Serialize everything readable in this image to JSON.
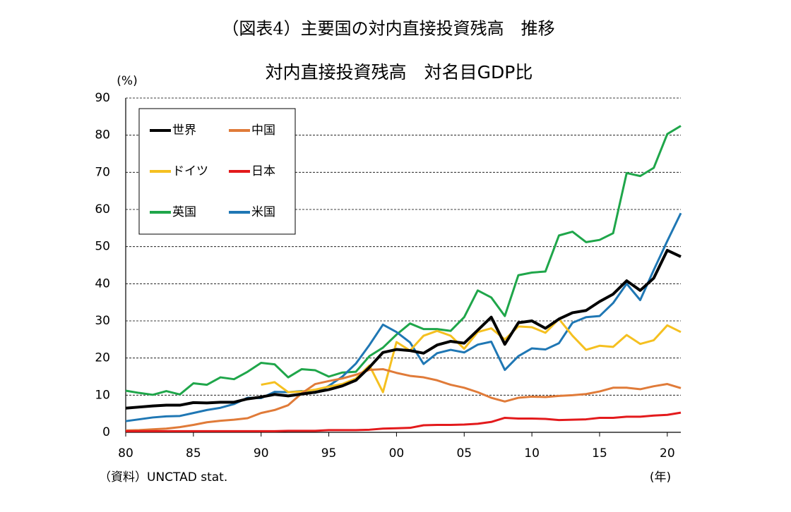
{
  "chart_data": {
    "type": "line",
    "page_title": "（図表4）主要国の対内直接投資残高　推移",
    "title": "対内直接投資残高　対名目GDP比",
    "y_unit": "(%)",
    "x_unit": "(年)",
    "source": "（資料）UNCTAD stat.",
    "x": [
      1980,
      1981,
      1982,
      1983,
      1984,
      1985,
      1986,
      1987,
      1988,
      1989,
      1990,
      1991,
      1992,
      1993,
      1994,
      1995,
      1996,
      1997,
      1998,
      1999,
      2000,
      2001,
      2002,
      2003,
      2004,
      2005,
      2006,
      2007,
      2008,
      2009,
      2010,
      2011,
      2012,
      2013,
      2014,
      2015,
      2016,
      2017,
      2018,
      2019,
      2020,
      2021
    ],
    "xlim": [
      1980,
      2021
    ],
    "xticks": [
      {
        "value": 1980,
        "label": "80"
      },
      {
        "value": 1985,
        "label": "85"
      },
      {
        "value": 1990,
        "label": "90"
      },
      {
        "value": 1995,
        "label": "95"
      },
      {
        "value": 2000,
        "label": "00"
      },
      {
        "value": 2005,
        "label": "05"
      },
      {
        "value": 2010,
        "label": "10"
      },
      {
        "value": 2015,
        "label": "15"
      },
      {
        "value": 2020,
        "label": "20"
      }
    ],
    "ylim": [
      0,
      90
    ],
    "yticks": [
      0,
      10,
      20,
      30,
      40,
      50,
      60,
      70,
      80,
      90
    ],
    "grid": true,
    "series": [
      {
        "name": "世界",
        "color": "#000000",
        "values": [
          6.5,
          6.8,
          7.1,
          7.3,
          7.3,
          8.0,
          7.9,
          8.1,
          8.1,
          9.0,
          9.5,
          10.2,
          9.8,
          10.3,
          10.8,
          11.5,
          12.5,
          14.0,
          17.5,
          21.5,
          22.3,
          22.0,
          21.3,
          23.5,
          24.5,
          24.0,
          27.5,
          31.0,
          23.7,
          29.5,
          30.0,
          28.0,
          30.5,
          32.2,
          32.8,
          35.2,
          37.2,
          40.8,
          38.2,
          41.5,
          49.0,
          47.3
        ]
      },
      {
        "name": "中国",
        "color": "#e07b39",
        "values": [
          0.5,
          0.6,
          0.8,
          1.0,
          1.4,
          2.0,
          2.7,
          3.1,
          3.4,
          3.8,
          5.2,
          6.0,
          7.3,
          10.5,
          13.0,
          13.8,
          14.5,
          15.5,
          16.8,
          17.0,
          16.0,
          15.2,
          14.8,
          14.0,
          12.8,
          12.0,
          10.8,
          9.3,
          8.3,
          9.3,
          9.6,
          9.5,
          9.8,
          10.0,
          10.3,
          11.0,
          12.0,
          12.0,
          11.6,
          12.4,
          13.0,
          11.9
        ]
      },
      {
        "name": "ドイツ",
        "color": "#f5c020",
        "values": [
          null,
          null,
          null,
          null,
          null,
          null,
          null,
          null,
          null,
          null,
          12.8,
          13.5,
          10.8,
          11.0,
          11.5,
          12.3,
          13.0,
          14.5,
          18.0,
          10.8,
          24.3,
          22.0,
          26.0,
          27.3,
          26.0,
          22.5,
          27.0,
          28.0,
          25.0,
          28.5,
          28.3,
          26.8,
          30.5,
          26.0,
          22.2,
          23.3,
          23.0,
          26.2,
          23.8,
          24.8,
          28.8,
          27.0
        ]
      },
      {
        "name": "日本",
        "color": "#e31a1c",
        "values": [
          0.3,
          0.3,
          0.3,
          0.3,
          0.3,
          0.3,
          0.3,
          0.3,
          0.3,
          0.3,
          0.3,
          0.3,
          0.4,
          0.4,
          0.4,
          0.6,
          0.6,
          0.6,
          0.7,
          1.0,
          1.1,
          1.2,
          1.9,
          2.0,
          2.0,
          2.1,
          2.3,
          2.8,
          3.9,
          3.7,
          3.7,
          3.6,
          3.3,
          3.4,
          3.5,
          3.9,
          3.9,
          4.2,
          4.2,
          4.5,
          4.7,
          5.3
        ]
      },
      {
        "name": "英国",
        "color": "#1fa64a",
        "values": [
          11.2,
          10.6,
          10.1,
          11.1,
          10.2,
          13.2,
          12.8,
          14.8,
          14.3,
          16.3,
          18.7,
          18.3,
          14.8,
          17.0,
          16.7,
          15.0,
          16.1,
          16.3,
          20.5,
          22.8,
          26.3,
          29.3,
          27.8,
          27.8,
          27.3,
          31.0,
          38.2,
          36.3,
          31.3,
          42.3,
          43.0,
          43.3,
          53.0,
          54.0,
          51.2,
          51.8,
          53.6,
          69.8,
          69.0,
          71.2,
          80.3,
          82.5
        ]
      },
      {
        "name": "米国",
        "color": "#1f77b4",
        "values": [
          3.0,
          3.5,
          4.0,
          4.3,
          4.4,
          5.2,
          6.0,
          6.6,
          7.6,
          9.3,
          9.2,
          10.9,
          10.8,
          11.1,
          10.6,
          12.5,
          15.0,
          18.5,
          23.5,
          29.0,
          27.0,
          24.2,
          18.4,
          21.3,
          22.2,
          21.5,
          23.6,
          24.4,
          16.8,
          20.5,
          22.6,
          22.3,
          24.0,
          29.5,
          31.0,
          31.3,
          34.8,
          40.0,
          35.6,
          43.7,
          51.5,
          59.0
        ]
      }
    ]
  }
}
